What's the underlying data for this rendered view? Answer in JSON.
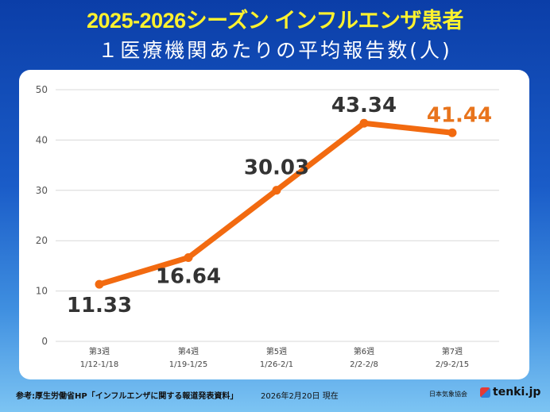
{
  "header": {
    "title": "2025-2026シーズン インフルエンザ患者",
    "subtitle": "１医療機関あたりの平均報告数(人)"
  },
  "chart_data": {
    "type": "line",
    "categories": [
      [
        "第3週",
        "1/12-1/18"
      ],
      [
        "第4週",
        "1/19-1/25"
      ],
      [
        "第5週",
        "1/26-2/1"
      ],
      [
        "第6週",
        "2/2-2/8"
      ],
      [
        "第7週",
        "2/9-2/15"
      ]
    ],
    "values": [
      11.33,
      16.64,
      30.03,
      43.34,
      41.44
    ],
    "data_labels": [
      "11.33",
      "16.64",
      "30.03",
      "43.34",
      "41.44"
    ],
    "ylim": [
      0,
      50
    ],
    "yticks": [
      0,
      10,
      20,
      30,
      40,
      50
    ],
    "grid": true,
    "line_color": "#f26a10",
    "label_color": "#333333",
    "latest_label_color": "#e8741c"
  },
  "footer": {
    "source": "参考:厚生労働省HP「インフルエンザに関する報道発表資料」",
    "date": "2026年2月20日 現在",
    "org": "日本気象協会",
    "logo": "tenki.jp"
  }
}
